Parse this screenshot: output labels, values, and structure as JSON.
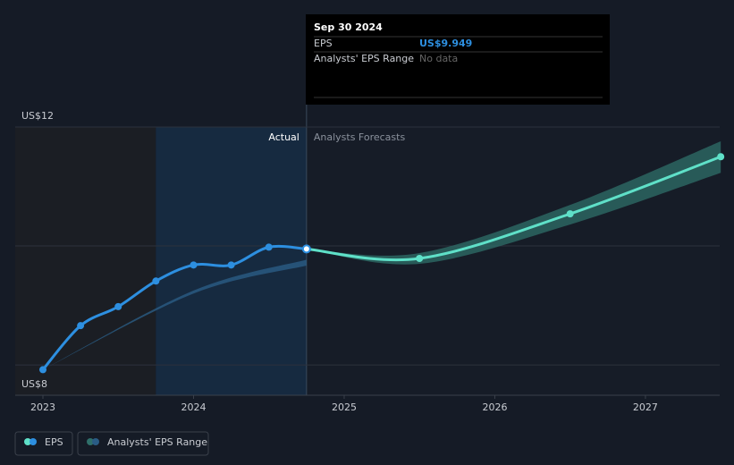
{
  "chart_data": {
    "type": "line",
    "xlim": [
      2022.816,
      2027.493
    ],
    "ylim": [
      7.49,
      12
    ],
    "xticks": [
      2023,
      2024,
      2025,
      2026,
      2027
    ],
    "yticks": [
      {
        "value": 8,
        "label": "US$8"
      },
      {
        "value": 10
      },
      {
        "value": 12,
        "label": "US$12"
      }
    ],
    "grid": true,
    "actual_region": [
      2023.75,
      2024.75
    ],
    "region_labels": [
      "Actual",
      "Analysts Forecasts"
    ],
    "series": [
      {
        "name": "EPS",
        "color": "#2d8fe0",
        "x": [
          2023,
          2023.25,
          2023.5,
          2023.75,
          2024,
          2024.25,
          2024.5,
          2024.75
        ],
        "values": [
          7.92,
          8.66,
          8.98,
          9.41,
          9.68,
          9.68,
          9.98,
          9.949
        ]
      }
    ],
    "forecast": {
      "color": "#5fe0c8",
      "x": [
        2024.75,
        2025.5,
        2026.5,
        2027.5
      ],
      "values": [
        9.949,
        9.79,
        10.54,
        11.5
      ]
    },
    "range": {
      "name": "Analysts' EPS Range",
      "color": "#2f6f6a",
      "x": [
        2024.75,
        2025.5,
        2026.5,
        2027.5
      ],
      "low": [
        9.949,
        9.7,
        10.36,
        11.23
      ],
      "high": [
        9.949,
        9.88,
        10.69,
        11.76
      ]
    },
    "range_history": {
      "color": "#2a5c85",
      "x": [
        2023,
        2024,
        2024.75
      ],
      "low": [
        7.92,
        9.2,
        9.67
      ],
      "high": [
        7.92,
        9.25,
        9.77
      ]
    },
    "tooltip": {
      "date": "Sep 30 2024",
      "rows": [
        {
          "label": "EPS",
          "value": "US$9.949"
        },
        {
          "label": "Analysts' EPS Range",
          "value": "No data"
        }
      ]
    }
  }
}
